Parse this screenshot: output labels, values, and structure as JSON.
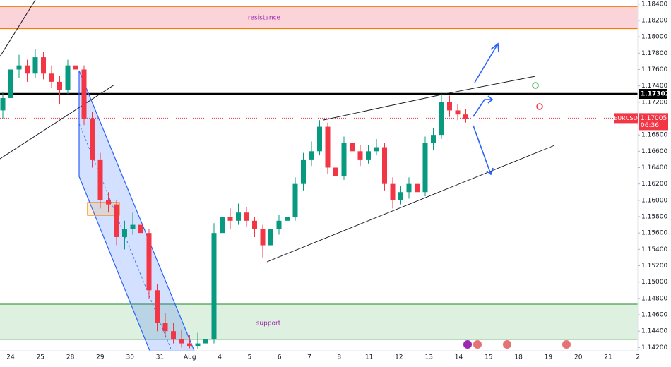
{
  "chart_data": {
    "type": "candlestick",
    "symbol": "EURUSD",
    "countdown": "06:36",
    "x_labels": [
      "24",
      "25",
      "28",
      "29",
      "30",
      "31",
      "Aug",
      "4",
      "5",
      "6",
      "7",
      "8",
      "11",
      "12",
      "13",
      "14",
      "15",
      "18",
      "19",
      "20",
      "21",
      "2"
    ],
    "open": [
      1.171,
      1.1725,
      1.176,
      1.1765,
      1.1755,
      1.1775,
      1.1755,
      1.1745,
      1.1735,
      1.1765,
      1.176,
      1.17,
      1.165,
      1.16,
      1.1595,
      1.1555,
      1.1565,
      1.157,
      1.156,
      1.149,
      1.145,
      1.144,
      1.143,
      1.1425,
      1.1422,
      1.1425,
      1.143,
      1.156,
      1.158,
      1.1575,
      1.1585,
      1.1575,
      1.1565,
      1.1545,
      1.1565,
      1.1575,
      1.158,
      1.162,
      1.165,
      1.166,
      1.169,
      1.164,
      1.163,
      1.167,
      1.166,
      1.165,
      1.166,
      1.1665,
      1.162,
      1.16,
      1.161,
      1.162,
      1.161,
      1.167,
      1.168,
      1.172,
      1.171,
      1.1705
    ],
    "high": [
      1.1732,
      1.1768,
      1.1778,
      1.1772,
      1.1785,
      1.1782,
      1.1765,
      1.1752,
      1.1772,
      1.1775,
      1.1765,
      1.1708,
      1.1658,
      1.161,
      1.16,
      1.1575,
      1.1585,
      1.1578,
      1.1565,
      1.1498,
      1.1462,
      1.145,
      1.1442,
      1.1435,
      1.1438,
      1.144,
      1.1572,
      1.1598,
      1.159,
      1.1596,
      1.1592,
      1.158,
      1.157,
      1.1572,
      1.1582,
      1.1588,
      1.1628,
      1.1658,
      1.1672,
      1.1698,
      1.1695,
      1.1648,
      1.1678,
      1.1675,
      1.1668,
      1.1668,
      1.1675,
      1.167,
      1.1628,
      1.1618,
      1.1628,
      1.1625,
      1.1678,
      1.1688,
      1.173,
      1.1728,
      1.1718,
      1.1712
    ],
    "low": [
      1.17,
      1.1718,
      1.175,
      1.1745,
      1.175,
      1.1748,
      1.1738,
      1.1718,
      1.173,
      1.1752,
      1.1692,
      1.164,
      1.159,
      1.1585,
      1.1545,
      1.154,
      1.1558,
      1.155,
      1.148,
      1.144,
      1.1432,
      1.1425,
      1.142,
      1.1419,
      1.1418,
      1.142,
      1.1425,
      1.1552,
      1.1565,
      1.157,
      1.1568,
      1.1555,
      1.153,
      1.154,
      1.1558,
      1.1568,
      1.1575,
      1.1612,
      1.1642,
      1.1655,
      1.1632,
      1.1612,
      1.1625,
      1.1652,
      1.1642,
      1.1645,
      1.1655,
      1.1612,
      1.159,
      1.1595,
      1.1602,
      1.1598,
      1.1605,
      1.1662,
      1.1675,
      1.1702,
      1.1698,
      1.1695
    ],
    "close": [
      1.1725,
      1.176,
      1.1765,
      1.1755,
      1.1775,
      1.1755,
      1.1745,
      1.1735,
      1.1765,
      1.176,
      1.17,
      1.165,
      1.16,
      1.1595,
      1.1555,
      1.1565,
      1.157,
      1.156,
      1.149,
      1.145,
      1.144,
      1.143,
      1.1425,
      1.1422,
      1.1425,
      1.143,
      1.156,
      1.158,
      1.1575,
      1.1585,
      1.1575,
      1.1565,
      1.1545,
      1.1565,
      1.1575,
      1.158,
      1.162,
      1.165,
      1.166,
      1.169,
      1.164,
      1.163,
      1.167,
      1.166,
      1.165,
      1.166,
      1.1665,
      1.162,
      1.16,
      1.161,
      1.162,
      1.161,
      1.167,
      1.168,
      1.172,
      1.171,
      1.1705,
      1.17
    ],
    "up_color": "#089981",
    "down_color": "#f23645",
    "ylim": [
      1.1416,
      1.1845
    ],
    "yticks": [
      {
        "value": 1.142,
        "label": "1.14200"
      },
      {
        "value": 1.144,
        "label": "1.14400"
      },
      {
        "value": 1.146,
        "label": "1.14600"
      },
      {
        "value": 1.148,
        "label": "1.14800"
      },
      {
        "value": 1.15,
        "label": "1.15000"
      },
      {
        "value": 1.152,
        "label": "1.15200"
      },
      {
        "value": 1.154,
        "label": "1.15400"
      },
      {
        "value": 1.156,
        "label": "1.15600"
      },
      {
        "value": 1.158,
        "label": "1.15800"
      },
      {
        "value": 1.16,
        "label": "1.16000"
      },
      {
        "value": 1.162,
        "label": "1.16200"
      },
      {
        "value": 1.164,
        "label": "1.16400"
      },
      {
        "value": 1.166,
        "label": "1.16600"
      },
      {
        "value": 1.168,
        "label": "1.16800"
      },
      {
        "value": 1.172,
        "label": "1.17200"
      },
      {
        "value": 1.174,
        "label": "1.17400"
      },
      {
        "value": 1.176,
        "label": "1.17600"
      },
      {
        "value": 1.178,
        "label": "1.17800"
      },
      {
        "value": 1.18,
        "label": "1.18000"
      },
      {
        "value": 1.182,
        "label": "1.18200"
      },
      {
        "value": 1.184,
        "label": "1.18400"
      }
    ],
    "resistance": {
      "label": "resistance",
      "range": [
        1.181,
        1.1837
      ],
      "color": "#f7b7c0",
      "border": "#f57c00"
    },
    "support": {
      "label": "support",
      "range": [
        1.143,
        1.1473
      ],
      "color": "#c8e6c9",
      "border": "#43a047"
    },
    "key_level": {
      "value": 1.17302,
      "label": "1.17302"
    },
    "last_price": {
      "value": 1.17005,
      "label": "1.17005"
    }
  }
}
